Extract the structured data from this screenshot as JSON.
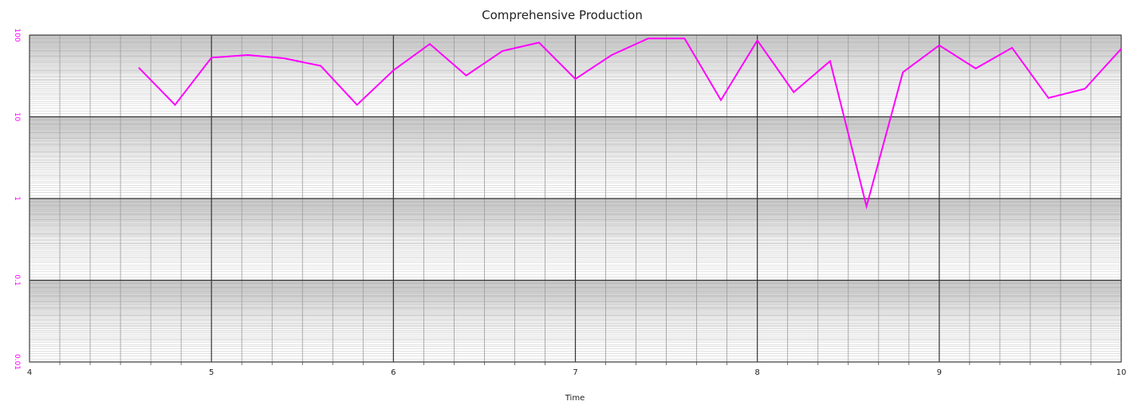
{
  "chart_data": {
    "type": "line",
    "title": "Comprehensive Production",
    "xlabel": "Time",
    "ylabel": "",
    "xlim": [
      4,
      10
    ],
    "ylim": [
      0.01,
      100
    ],
    "y_scale": "log",
    "grid": true,
    "x_ticks": [
      "4",
      "5",
      "6",
      "7",
      "8",
      "9",
      "10"
    ],
    "y_ticks": [
      "100",
      "10",
      "1",
      "0.1",
      "0.01"
    ],
    "colors": {
      "series": "#ff00ff",
      "tick_y": "#ff00ff",
      "grid_major": "#333333",
      "grid_minor": "#b4b4b4"
    },
    "series": [
      {
        "x": [
          4.6,
          4.8,
          5.0,
          5.2,
          5.4,
          5.6,
          5.8,
          6.0,
          6.2,
          6.4,
          6.6,
          6.8,
          7.0,
          7.2,
          7.4,
          7.6,
          7.8,
          8.0,
          8.2,
          8.4,
          8.6,
          8.8,
          9.0,
          9.2,
          9.4,
          9.6,
          9.8,
          10.0
        ],
        "values": [
          40,
          14,
          53,
          57,
          52,
          42,
          14,
          37,
          78,
          32,
          64,
          81,
          29,
          57,
          91,
          91,
          16,
          86,
          20,
          48,
          0.8,
          35,
          75,
          39,
          70,
          17,
          22,
          68
        ]
      }
    ]
  }
}
